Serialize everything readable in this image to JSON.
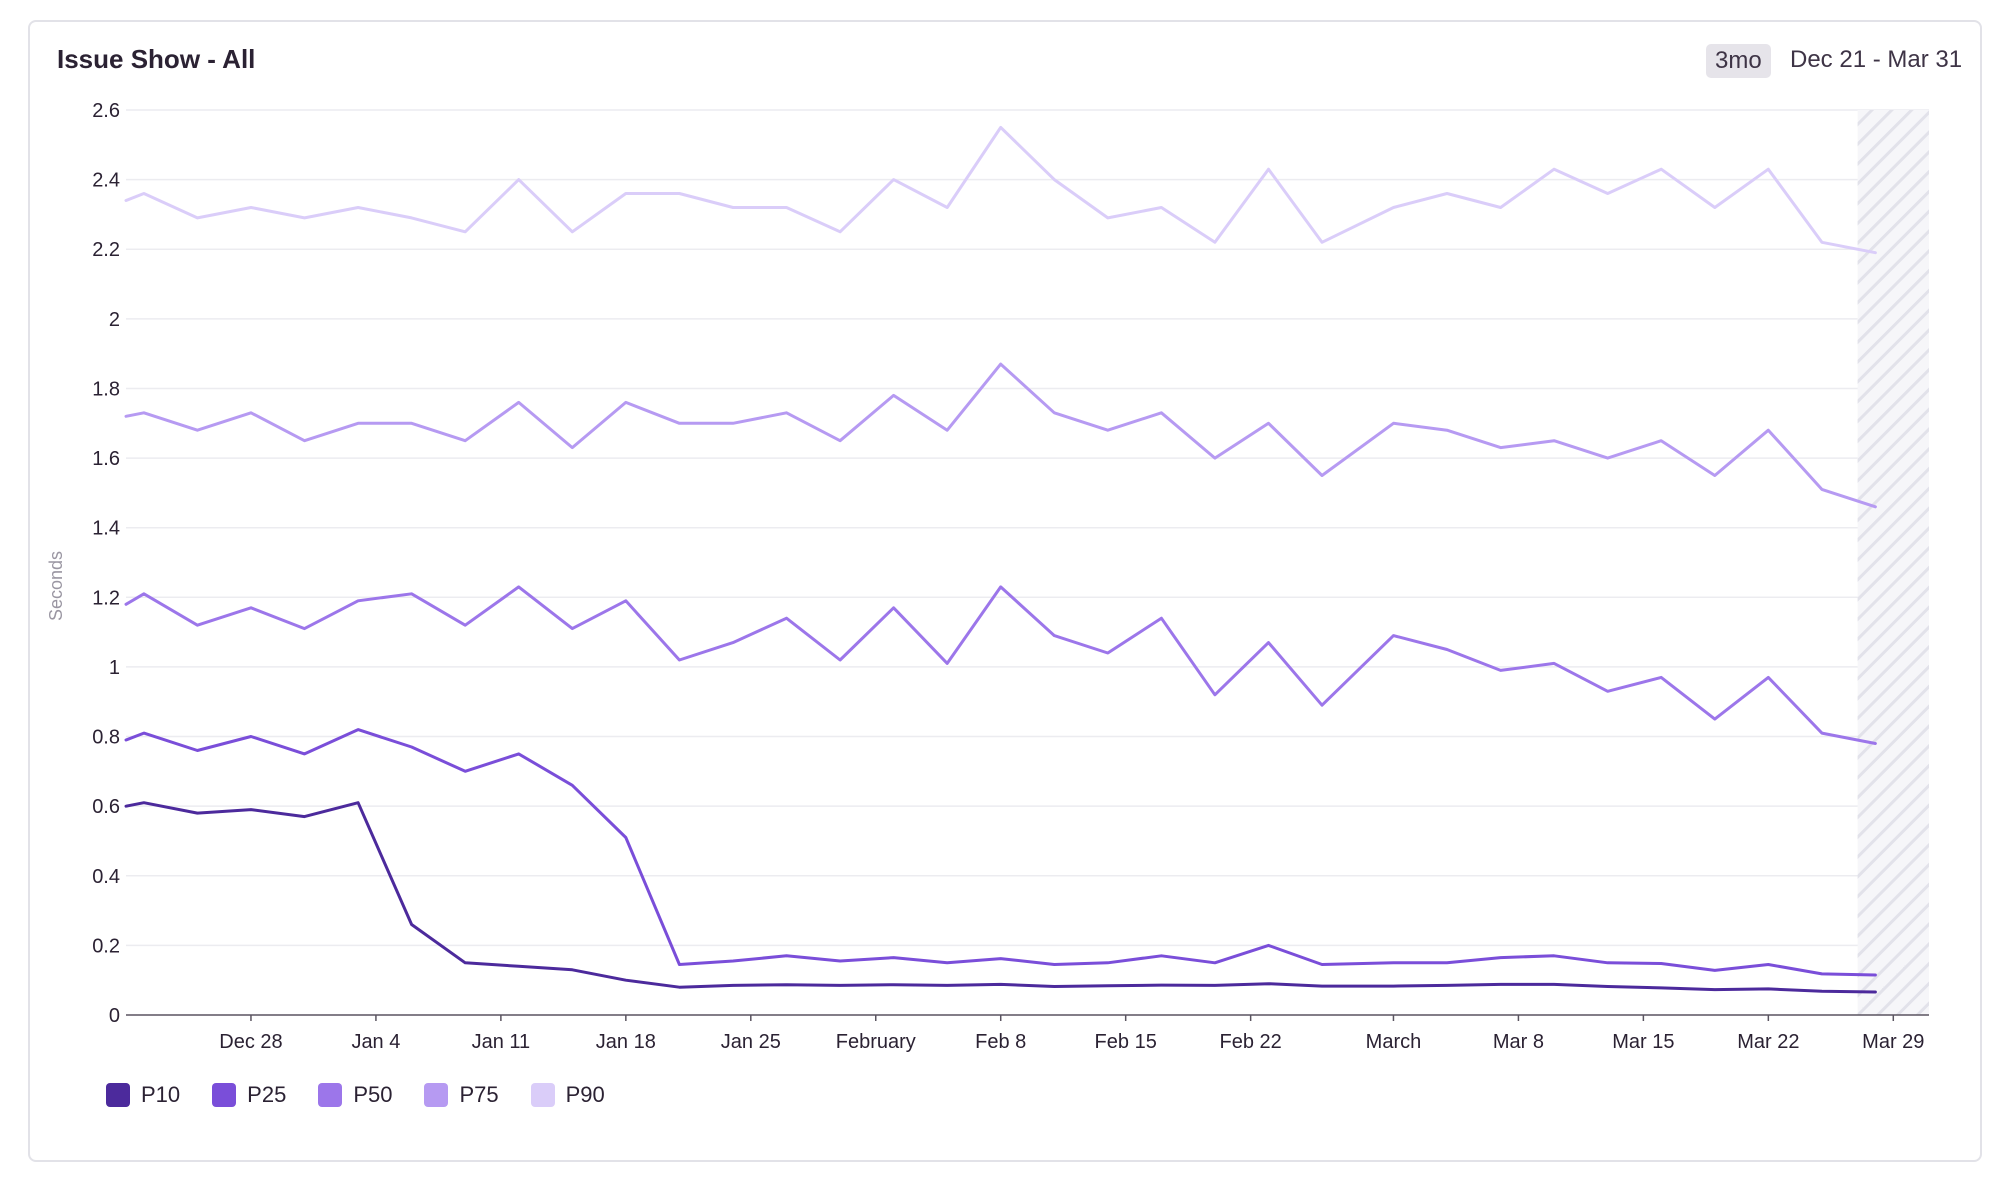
{
  "panel": {
    "title": "Issue Show - All",
    "range_badge": "3mo",
    "range_text": "Dec 21 - Mar 31"
  },
  "chart_data": {
    "type": "line",
    "title": "Issue Show - All",
    "xlabel": "",
    "ylabel": "Seconds",
    "ylim": [
      0,
      2.6
    ],
    "yticks": [
      "0",
      "0.2",
      "0.4",
      "0.6",
      "0.8",
      "1",
      "1.2",
      "1.4",
      "1.6",
      "1.8",
      "2",
      "2.2",
      "2.4",
      "2.6"
    ],
    "x": [
      "Dec 21",
      "Dec 22",
      "Dec 25",
      "Dec 28",
      "Dec 31",
      "Jan 3",
      "Jan 6",
      "Jan 9",
      "Jan 12",
      "Jan 15",
      "Jan 18",
      "Jan 21",
      "Jan 24",
      "Jan 27",
      "Jan 30",
      "Feb 2",
      "Feb 5",
      "Feb 8",
      "Feb 11",
      "Feb 14",
      "Feb 17",
      "Feb 20",
      "Feb 23",
      "Feb 26",
      "Mar 1",
      "Mar 4",
      "Mar 7",
      "Mar 10",
      "Mar 13",
      "Mar 16",
      "Mar 19",
      "Mar 22",
      "Mar 25",
      "Mar 28"
    ],
    "xtick_labels": [
      {
        "label": "Dec 28",
        "date": "Dec 28"
      },
      {
        "label": "Jan 4",
        "date": "Jan 4"
      },
      {
        "label": "Jan 11",
        "date": "Jan 11"
      },
      {
        "label": "Jan 18",
        "date": "Jan 18"
      },
      {
        "label": "Jan 25",
        "date": "Jan 25"
      },
      {
        "label": "February",
        "date": "Feb 1"
      },
      {
        "label": "Feb 8",
        "date": "Feb 8"
      },
      {
        "label": "Feb 15",
        "date": "Feb 15"
      },
      {
        "label": "Feb 22",
        "date": "Feb 22"
      },
      {
        "label": "March",
        "date": "Mar 1"
      },
      {
        "label": "Mar 8",
        "date": "Mar 8"
      },
      {
        "label": "Mar 15",
        "date": "Mar 15"
      },
      {
        "label": "Mar 22",
        "date": "Mar 22"
      },
      {
        "label": "Mar 29",
        "date": "Mar 29"
      }
    ],
    "incomplete_period": {
      "from": "Mar 27",
      "to": "Mar 31",
      "style": "hatched"
    },
    "grid": true,
    "legend_position": "bottom-left",
    "series": [
      {
        "name": "P10",
        "color": "#4c2a9c",
        "values": [
          0.6,
          0.61,
          0.58,
          0.59,
          0.57,
          0.61,
          0.26,
          0.15,
          0.14,
          0.13,
          0.1,
          0.08,
          0.085,
          0.087,
          0.085,
          0.087,
          0.085,
          0.088,
          0.082,
          0.084,
          0.086,
          0.085,
          0.09,
          0.083,
          0.083,
          0.085,
          0.088,
          0.088,
          0.082,
          0.078,
          0.073,
          0.075,
          0.068,
          0.066
        ]
      },
      {
        "name": "P25",
        "color": "#7a4ed9",
        "values": [
          0.79,
          0.81,
          0.76,
          0.8,
          0.75,
          0.82,
          0.77,
          0.7,
          0.75,
          0.66,
          0.51,
          0.145,
          0.155,
          0.17,
          0.155,
          0.165,
          0.15,
          0.162,
          0.145,
          0.15,
          0.17,
          0.15,
          0.2,
          0.145,
          0.15,
          0.15,
          0.165,
          0.17,
          0.15,
          0.148,
          0.128,
          0.145,
          0.118,
          0.115
        ]
      },
      {
        "name": "P50",
        "color": "#9c76ea",
        "values": [
          1.18,
          1.21,
          1.12,
          1.17,
          1.11,
          1.19,
          1.21,
          1.12,
          1.23,
          1.11,
          1.19,
          1.02,
          1.07,
          1.14,
          1.02,
          1.17,
          1.01,
          1.23,
          1.09,
          1.04,
          1.14,
          0.92,
          1.07,
          0.89,
          1.09,
          1.05,
          0.99,
          1.01,
          0.93,
          0.97,
          0.85,
          0.97,
          0.81,
          0.78
        ]
      },
      {
        "name": "P75",
        "color": "#b69af2",
        "values": [
          1.72,
          1.73,
          1.68,
          1.73,
          1.65,
          1.7,
          1.7,
          1.65,
          1.76,
          1.63,
          1.76,
          1.7,
          1.7,
          1.73,
          1.65,
          1.78,
          1.68,
          1.87,
          1.73,
          1.68,
          1.73,
          1.6,
          1.7,
          1.55,
          1.7,
          1.68,
          1.63,
          1.65,
          1.6,
          1.65,
          1.55,
          1.68,
          1.51,
          1.46
        ]
      },
      {
        "name": "P90",
        "color": "#dacdf9",
        "values": [
          2.34,
          2.36,
          2.29,
          2.32,
          2.29,
          2.32,
          2.29,
          2.25,
          2.4,
          2.25,
          2.36,
          2.36,
          2.32,
          2.32,
          2.25,
          2.4,
          2.32,
          2.55,
          2.4,
          2.29,
          2.32,
          2.22,
          2.43,
          2.22,
          2.32,
          2.36,
          2.32,
          2.43,
          2.36,
          2.43,
          2.32,
          2.43,
          2.22,
          2.19
        ]
      }
    ]
  }
}
